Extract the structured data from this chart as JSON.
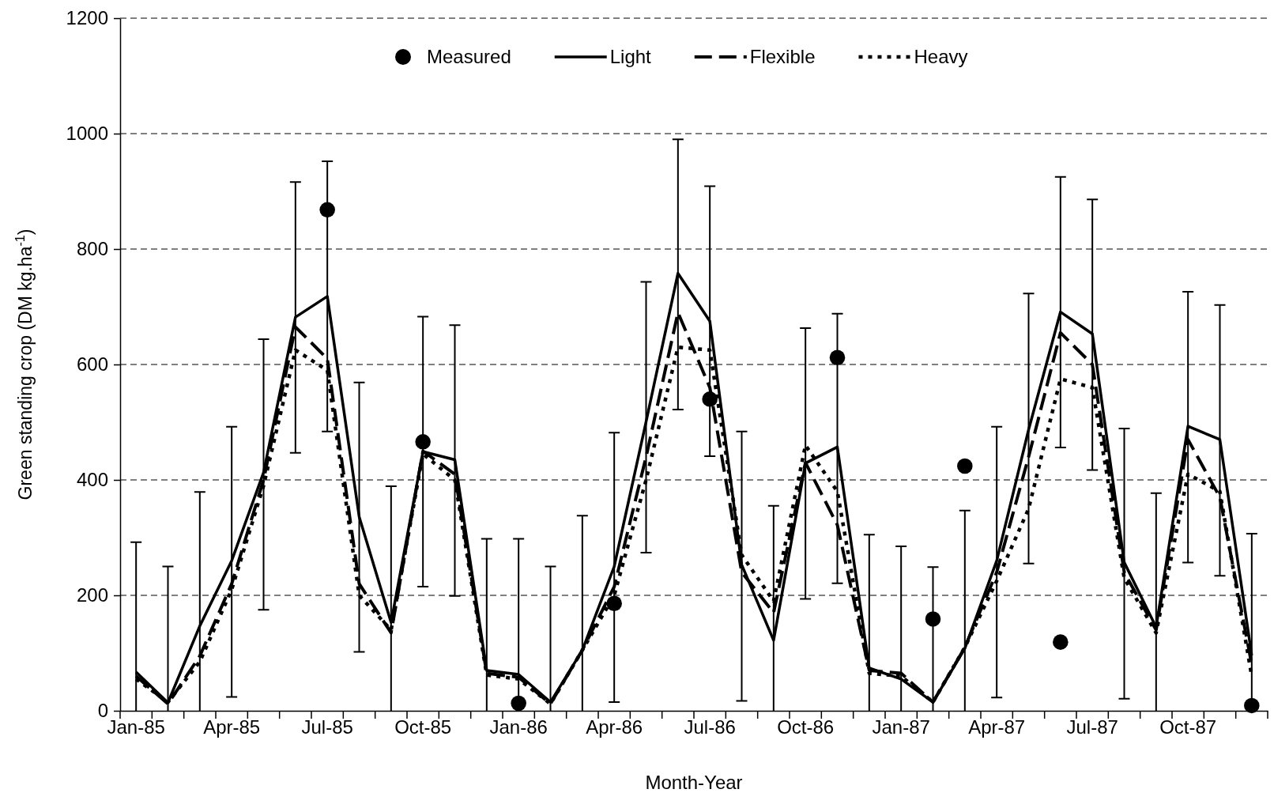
{
  "chart_data": {
    "type": "line",
    "xlabel": "Month-Year",
    "ylabel": "Green standing crop (DM kg.ha$^{-1}$)",
    "categories": [
      "Jan-85",
      null,
      null,
      "Apr-85",
      null,
      null,
      "Jul-85",
      null,
      null,
      "Oct-85",
      null,
      null,
      "Jan-86",
      null,
      null,
      "Apr-86",
      null,
      null,
      "Jul-86",
      null,
      null,
      "Oct-86",
      null,
      null,
      "Jan-87",
      null,
      null,
      "Apr-87",
      null,
      null,
      "Jul-87",
      null,
      null,
      "Oct-87",
      null,
      null
    ],
    "ylim": [
      0,
      1200
    ],
    "yticks": [
      0,
      200,
      400,
      600,
      800,
      1000,
      1200
    ],
    "grid": "y",
    "legend": "top",
    "series": [
      {
        "name": "Measured",
        "type": "scatter",
        "marker": "circle",
        "color": "#000000",
        "values": [
          null,
          null,
          null,
          null,
          null,
          null,
          868,
          null,
          null,
          466,
          null,
          null,
          13,
          null,
          null,
          186,
          null,
          null,
          540,
          null,
          null,
          null,
          612,
          null,
          null,
          159,
          424,
          null,
          null,
          119,
          null,
          null,
          null,
          null,
          null,
          9
        ]
      },
      {
        "name": "Light",
        "line_style": "solid",
        "color": "#000000",
        "values": [
          67,
          14,
          147,
          260,
          413,
          682,
          718,
          336,
          153,
          449,
          435,
          70,
          63,
          15,
          105,
          250,
          501,
          758,
          675,
          253,
          122,
          429,
          457,
          74,
          55,
          15,
          108,
          260,
          487,
          691,
          653,
          257,
          145,
          493,
          470,
          96
        ],
        "errors": [
          [
            0,
            292
          ],
          [
            0,
            250
          ],
          [
            0,
            379
          ],
          [
            24,
            492
          ],
          [
            175,
            644
          ],
          [
            447,
            916
          ],
          [
            484,
            952
          ],
          [
            102,
            569
          ],
          [
            0,
            389
          ],
          [
            215,
            683
          ],
          [
            199,
            668
          ],
          [
            0,
            298
          ],
          [
            0,
            298
          ],
          [
            0,
            250
          ],
          [
            0,
            338
          ],
          [
            15,
            482
          ],
          [
            274,
            743
          ],
          [
            522,
            990
          ],
          [
            441,
            909
          ],
          [
            17,
            484
          ],
          [
            0,
            355
          ],
          [
            194,
            663
          ],
          [
            221,
            688
          ],
          [
            0,
            305
          ],
          [
            0,
            285
          ],
          [
            0,
            249
          ],
          [
            0,
            347
          ],
          [
            23,
            492
          ],
          [
            255,
            723
          ],
          [
            456,
            925
          ],
          [
            417,
            886
          ],
          [
            21,
            489
          ],
          [
            0,
            377
          ],
          [
            257,
            726
          ],
          [
            234,
            703
          ],
          [
            0,
            307
          ]
        ]
      },
      {
        "name": "Flexible",
        "line_style": "dashed",
        "color": "#000000",
        "values": [
          60,
          12,
          95,
          220,
          400,
          665,
          610,
          220,
          135,
          450,
          410,
          65,
          58,
          12,
          105,
          215,
          440,
          690,
          560,
          240,
          170,
          430,
          322,
          70,
          65,
          15,
          110,
          240,
          440,
          655,
          600,
          240,
          140,
          470,
          370,
          80
        ]
      },
      {
        "name": "Heavy",
        "line_style": "dotted",
        "color": "#000000",
        "values": [
          55,
          15,
          85,
          210,
          390,
          625,
          590,
          200,
          140,
          445,
          400,
          62,
          55,
          12,
          105,
          200,
          400,
          630,
          625,
          270,
          190,
          460,
          380,
          65,
          60,
          15,
          110,
          225,
          350,
          575,
          560,
          230,
          135,
          410,
          380,
          60
        ]
      }
    ]
  }
}
